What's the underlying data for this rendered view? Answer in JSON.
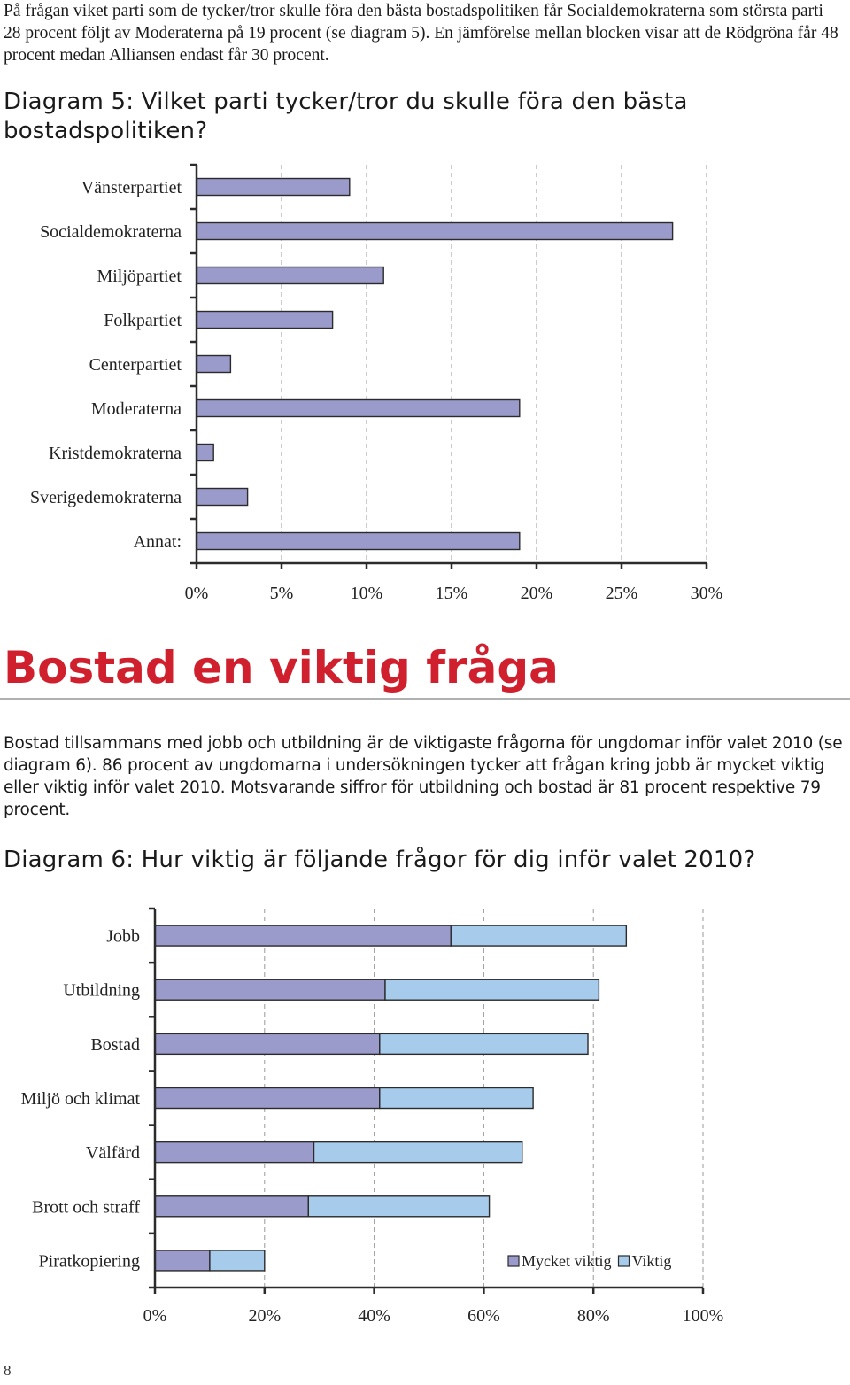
{
  "intro_paragraph": "På frågan viket parti som de tycker/tror skulle föra den bästa bostadspolitiken får Socialdemokraterna som största parti 28 procent följt av Moderaterna på 19 procent (se diagram 5). En jämförelse mellan blocken visar att de Rödgröna får 48 procent medan Alliansen endast får 30 procent.",
  "diagram5_title": "Diagram 5: Vilket parti tycker/tror du skulle föra den bästa bostadspolitiken?",
  "section_heading": "Bostad en viktig fråga",
  "section_paragraph": "Bostad tillsammans med jobb och utbildning är de viktigaste frågorna för ungdomar inför valet 2010 (se diagram 6). 86 procent av ungdomarna i undersökningen tycker att frågan kring jobb är mycket viktig eller viktig inför valet 2010. Motsvarande siffror för utbildning och bostad är 81 procent respektive 79 procent.",
  "diagram6_title": "Diagram 6: Hur viktig är följande frågor för dig inför valet 2010?",
  "page_number": "8",
  "colors": {
    "bar_purple": "#9b9bcb",
    "bar_blue": "#a7cbeb",
    "heading_red": "#d0202e"
  },
  "chart_data": [
    {
      "type": "bar",
      "orientation": "horizontal",
      "categories": [
        "Vänsterpartiet",
        "Socialdemokraterna",
        "Miljöpartiet",
        "Folkpartiet",
        "Centerpartiet",
        "Moderaterna",
        "Kristdemokraterna",
        "Sverigedemokraterna",
        "Annat:"
      ],
      "values": [
        9,
        28,
        11,
        8,
        2,
        19,
        1,
        3,
        19
      ],
      "unit": "%",
      "xlim": [
        0,
        30
      ],
      "x_ticks": [
        "0%",
        "5%",
        "10%",
        "15%",
        "20%",
        "25%",
        "30%"
      ],
      "grid": true
    },
    {
      "type": "bar",
      "orientation": "horizontal",
      "stacked": true,
      "categories": [
        "Jobb",
        "Utbildning",
        "Bostad",
        "Miljö och klimat",
        "Välfärd",
        "Brott och straff",
        "Piratkopiering"
      ],
      "series": [
        {
          "name": "Mycket viktig",
          "values": [
            54,
            42,
            41,
            41,
            29,
            28,
            10
          ]
        },
        {
          "name": "Viktig",
          "values": [
            32,
            39,
            38,
            28,
            38,
            33,
            10
          ]
        }
      ],
      "unit": "%",
      "xlim": [
        0,
        100
      ],
      "x_ticks": [
        "0%",
        "20%",
        "40%",
        "60%",
        "80%",
        "100%"
      ],
      "legend": "bottom-right",
      "grid": true
    }
  ]
}
